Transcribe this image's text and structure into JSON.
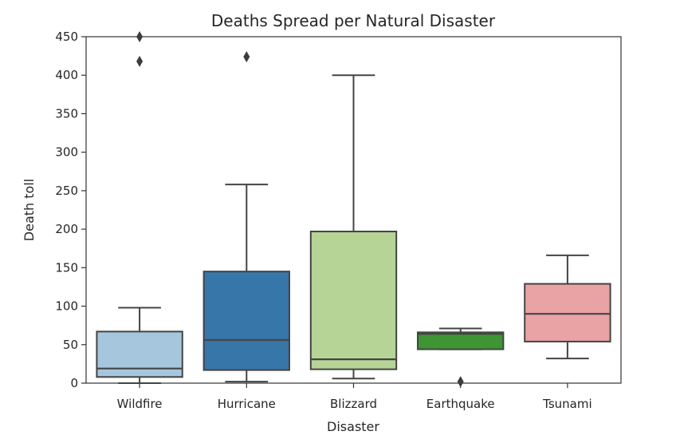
{
  "chart_data": {
    "type": "box",
    "title": "Deaths Spread per Natural Disaster",
    "xlabel": "Disaster",
    "ylabel": "Death toll",
    "ylim": [
      0,
      450
    ],
    "yticks": [
      0,
      50,
      100,
      150,
      200,
      250,
      300,
      350,
      400,
      450
    ],
    "grid": false,
    "categories": [
      "Wildfire",
      "Hurricane",
      "Blizzard",
      "Earthquake",
      "Tsunami"
    ],
    "boxes": [
      {
        "category": "Wildfire",
        "color": "#a6c6dd",
        "whisker_low": 0,
        "q1": 8,
        "median": 19,
        "q3": 67,
        "whisker_high": 98,
        "outliers": [
          418,
          450
        ]
      },
      {
        "category": "Hurricane",
        "color": "#3776a8",
        "whisker_low": 2,
        "q1": 17,
        "median": 56,
        "q3": 145,
        "whisker_high": 258,
        "outliers": [
          424
        ]
      },
      {
        "category": "Blizzard",
        "color": "#b6d496",
        "whisker_low": 6,
        "q1": 18,
        "median": 31,
        "q3": 197,
        "whisker_high": 400,
        "outliers": []
      },
      {
        "category": "Earthquake",
        "color": "#3e9534",
        "whisker_low": 44,
        "q1": 44,
        "median": 64,
        "q3": 66,
        "whisker_high": 71,
        "outliers": [
          2
        ]
      },
      {
        "category": "Tsunami",
        "color": "#e9a3a5",
        "whisker_low": 32,
        "q1": 54,
        "median": 90,
        "q3": 129,
        "whisker_high": 166,
        "outliers": []
      }
    ]
  }
}
